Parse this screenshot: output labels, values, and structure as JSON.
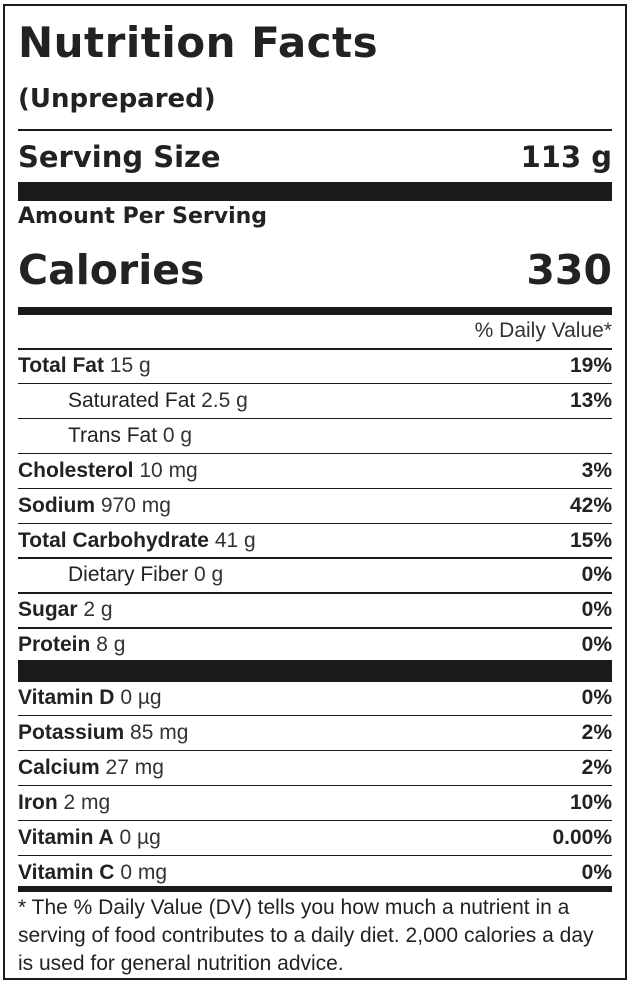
{
  "title": "Nutrition Facts",
  "subtitle": "(Unprepared)",
  "serving": {
    "label": "Serving Size",
    "value": "113 g"
  },
  "amount_per_serving": "Amount Per Serving",
  "calories": {
    "label": "Calories",
    "value": "330"
  },
  "dv_header": "% Daily Value*",
  "nutrients_main": [
    {
      "name": "Total Fat",
      "amount": "15 g",
      "dv": "19%"
    },
    {
      "name": "Saturated Fat",
      "amount": "2.5 g",
      "dv": "13%"
    },
    {
      "name": "Trans Fat",
      "amount": "0 g",
      "dv": ""
    },
    {
      "name": "Cholesterol",
      "amount": "10 mg",
      "dv": "3%"
    },
    {
      "name": "Sodium",
      "amount": "970 mg",
      "dv": "42%"
    },
    {
      "name": "Total Carbohydrate",
      "amount": "41 g",
      "dv": "15%"
    },
    {
      "name": "Dietary Fiber",
      "amount": "0 g",
      "dv": "0%"
    },
    {
      "name": "Sugar",
      "amount": "2 g",
      "dv": "0%"
    },
    {
      "name": "Protein",
      "amount": "8 g",
      "dv": "0%"
    }
  ],
  "nutrients_vitamins": [
    {
      "name": "Vitamin D",
      "amount": "0 µg",
      "dv": "0%"
    },
    {
      "name": "Potassium",
      "amount": "85 mg",
      "dv": "2%"
    },
    {
      "name": "Calcium",
      "amount": "27 mg",
      "dv": "2%"
    },
    {
      "name": "Iron",
      "amount": "2 mg",
      "dv": "10%"
    },
    {
      "name": "Vitamin A",
      "amount": "0 µg",
      "dv": "0.00%"
    },
    {
      "name": "Vitamin C",
      "amount": "0 mg",
      "dv": "0%"
    }
  ],
  "footnote": "* The % Daily Value (DV) tells you how much a nutrient in a serving of food contributes to a daily diet. 2,000 calories a day is used for general nutrition advice."
}
